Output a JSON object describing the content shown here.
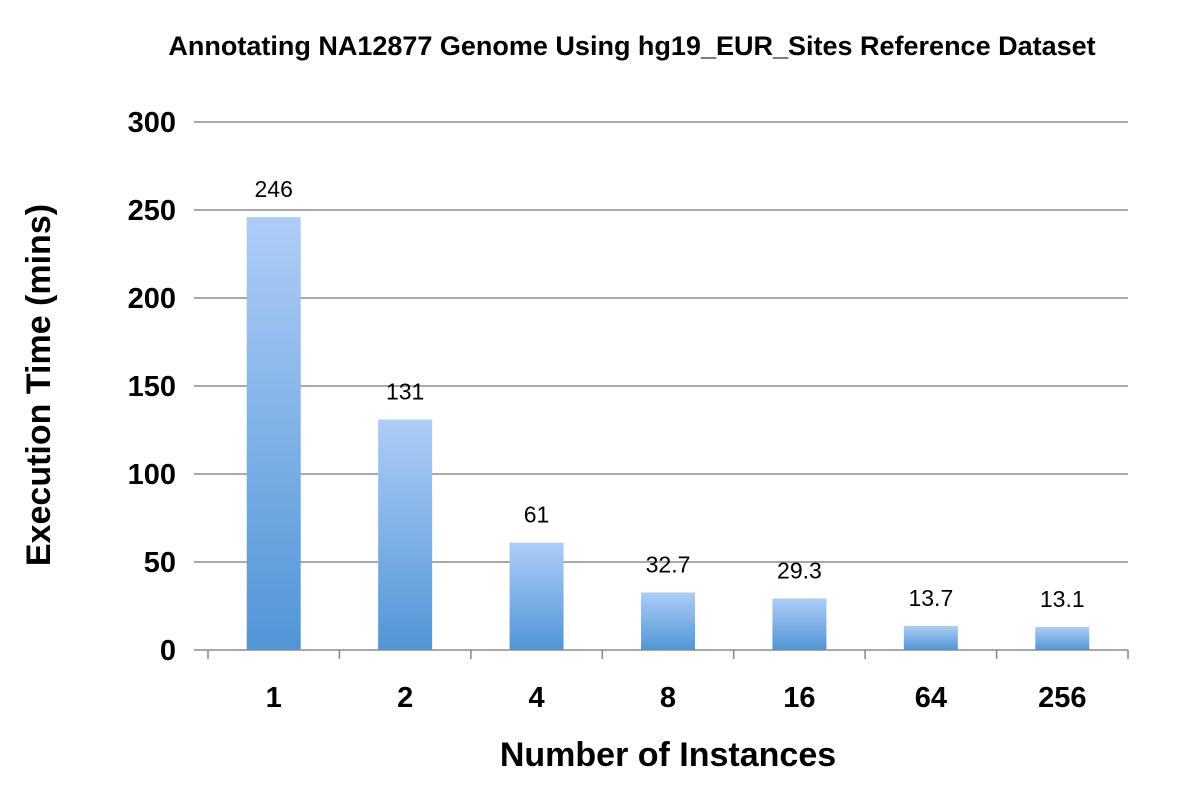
{
  "chart_data": {
    "type": "bar",
    "title": "Annotating NA12877 Genome Using hg19_EUR_Sites Reference Dataset",
    "xlabel": "Number of Instances",
    "ylabel": "Execution Time (mins)",
    "categories": [
      "1",
      "2",
      "4",
      "8",
      "16",
      "64",
      "256"
    ],
    "values": [
      246,
      131,
      61,
      32.7,
      29.3,
      13.7,
      13.1
    ],
    "data_labels": [
      "246",
      "131",
      "61",
      "32.7",
      "29.3",
      "13.7",
      "13.1"
    ],
    "ylim": [
      0,
      300
    ],
    "yticks": [
      0,
      50,
      100,
      150,
      200,
      250,
      300
    ],
    "grid": true,
    "legend": "none",
    "colors": {
      "bar_top": "#aecdf7",
      "bar_bottom": "#5195d6",
      "grid": "#8c8c8c"
    }
  }
}
